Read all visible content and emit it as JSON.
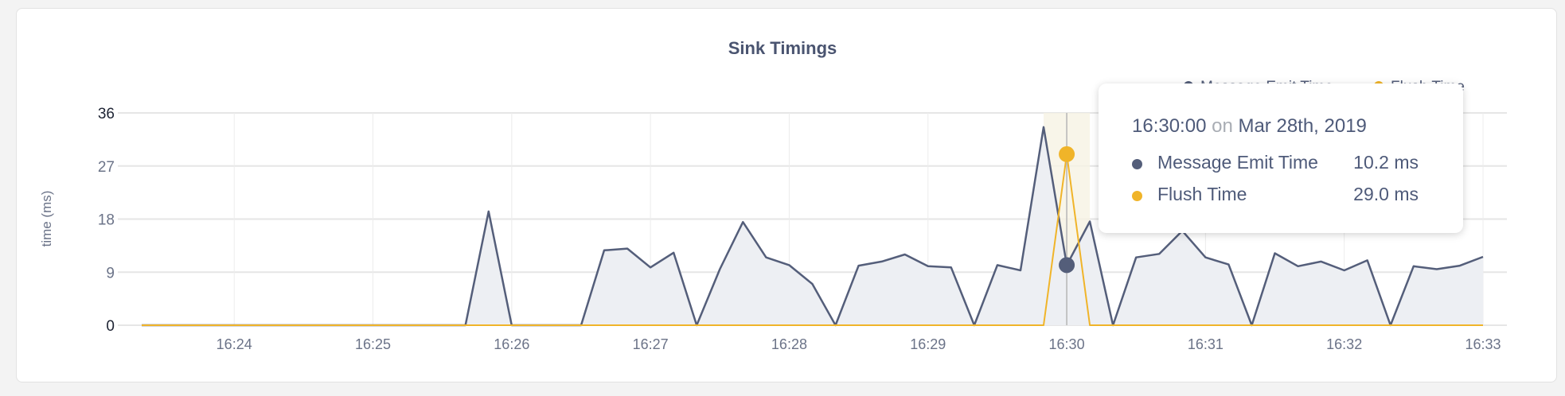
{
  "chart_data": {
    "type": "area",
    "title": "Sink Timings",
    "ylabel": "time (ms)",
    "xlabel": "",
    "ylim": [
      0,
      36
    ],
    "yticks": [
      "0",
      "9",
      "18",
      "27",
      "36"
    ],
    "xlim": [
      "16:23:20",
      "16:33:00"
    ],
    "xticks": [
      "16:24",
      "16:25",
      "16:26",
      "16:27",
      "16:28",
      "16:29",
      "16:30",
      "16:31",
      "16:32",
      "16:33"
    ],
    "x_interval_seconds": 10,
    "grid": true,
    "legend_placement": "top-right",
    "series": [
      {
        "name": "Message Emit Time",
        "color": "#545e7a",
        "values": [
          0,
          0,
          0,
          0,
          0,
          0,
          0,
          0,
          0,
          0,
          0,
          0,
          0,
          0,
          0,
          19.3,
          0,
          0,
          0,
          0,
          12.7,
          13.0,
          9.8,
          12.3,
          0,
          9.5,
          17.5,
          11.5,
          10.2,
          7.0,
          0,
          10.1,
          10.8,
          12.0,
          10.0,
          9.8,
          0,
          10.2,
          9.3,
          33.6,
          10.2,
          17.6,
          0,
          11.5,
          12.1,
          16.0,
          11.5,
          10.3,
          0,
          12.2,
          10.0,
          10.8,
          9.3,
          11.0,
          0,
          10.0,
          9.5,
          10.1,
          11.6
        ]
      },
      {
        "name": "Flush Time",
        "color": "#f0b429",
        "values": [
          0,
          0,
          0,
          0,
          0,
          0,
          0,
          0,
          0,
          0,
          0,
          0,
          0,
          0,
          0,
          0,
          0,
          0,
          0,
          0,
          0,
          0,
          0,
          0,
          0,
          0,
          0,
          0,
          0,
          0,
          0,
          0,
          0,
          0,
          0,
          0,
          0,
          0,
          0,
          0,
          29.0,
          0,
          0,
          0,
          0,
          0,
          0,
          0,
          0,
          0,
          0,
          0,
          0,
          0,
          0,
          0,
          0,
          0,
          0
        ]
      }
    ]
  },
  "tooltip": {
    "time": "16:30:00",
    "on": "on",
    "date": "Mar 28th, 2019",
    "hover_index": 40,
    "rows": [
      {
        "label": "Message Emit Time",
        "value": "10.2 ms",
        "color": "#545e7a"
      },
      {
        "label": "Flush Time",
        "value": "29.0 ms",
        "color": "#f0b429"
      }
    ]
  }
}
